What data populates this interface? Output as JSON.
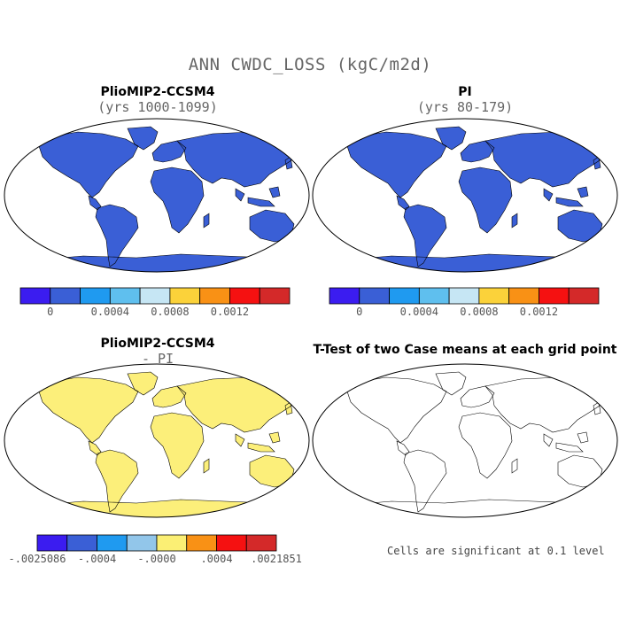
{
  "figure": {
    "title": "ANN CWDC_LOSS (kgC/m2d)"
  },
  "panels": [
    {
      "title": "PlioMIP2-CCSM4",
      "subtitle": "(yrs 1000-1099)"
    },
    {
      "title": "PI",
      "subtitle": "(yrs 80-179)"
    },
    {
      "title": "PlioMIP2-CCSM4",
      "subtitle": "- PI"
    },
    {
      "title": "T-Test of two Case means at each grid point",
      "subtitle": ""
    }
  ],
  "colorbars": {
    "abs": {
      "colors": [
        "#3b1cf0",
        "#3a5fd6",
        "#1f9af0",
        "#5fbfee",
        "#c6e6f4",
        "#fbd23a",
        "#f99115",
        "#f51111",
        "#d42929"
      ],
      "ticks": [
        "0",
        "0.0004",
        "0.0008",
        "0.0012"
      ]
    },
    "diff": {
      "colors": [
        "#3b1cf0",
        "#3a5fd6",
        "#1f9af0",
        "#92c6ea",
        "#fbef74",
        "#f99115",
        "#f51111",
        "#d42929"
      ],
      "ticks": [
        "-.0025086",
        "-.0004",
        "-.0000",
        ".0004",
        ".0021851"
      ]
    }
  },
  "significance": {
    "note": "Cells are significant at 0.1 level",
    "color": "#ff0000"
  },
  "map_colors": {
    "land_low": "#3a5fd6",
    "land_high": "#e01f1f",
    "land_mid": "#f5c518",
    "diff_base": "#fcef7a"
  }
}
